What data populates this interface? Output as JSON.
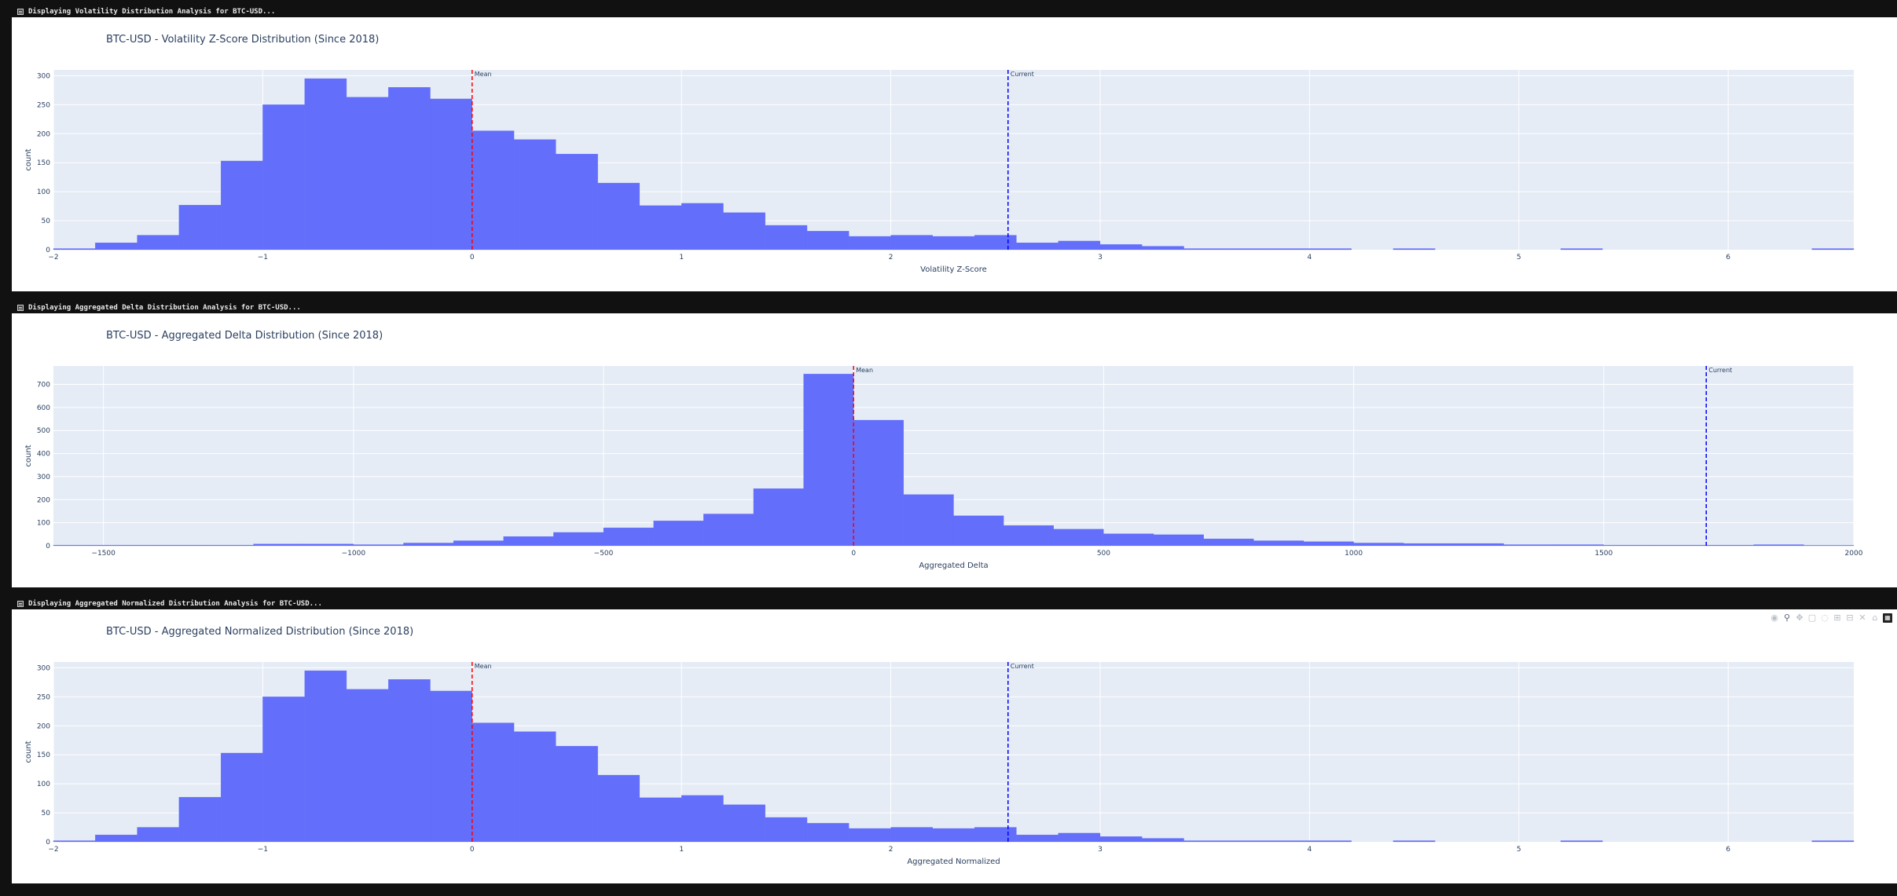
{
  "sections": [
    {
      "header": "Displaying Volatility Distribution Analysis for BTC-USD...",
      "title": "BTC-USD - Volatility Z-Score Distribution (Since 2018)",
      "xlabel": "Volatility Z-Score",
      "ylabel": "count"
    },
    {
      "header": "Displaying Aggregated Delta Distribution Analysis for BTC-USD...",
      "title": "BTC-USD - Aggregated Delta Distribution (Since 2018)",
      "xlabel": "Aggregated Delta",
      "ylabel": "count"
    },
    {
      "header": "Displaying Aggregated Normalized Distribution Analysis for BTC-USD...",
      "title": "BTC-USD - Aggregated Normalized Distribution (Since 2018)",
      "xlabel": "Aggregated Normalized",
      "ylabel": "count"
    }
  ],
  "modebar": [
    "camera-icon",
    "zoom-icon",
    "pan-icon",
    "box-select-icon",
    "lasso-icon",
    "zoom-in-icon",
    "zoom-out-icon",
    "autoscale-icon",
    "home-icon",
    "plotly-logo-icon"
  ],
  "colors": {
    "bar": "#636efa",
    "plot_bg": "#e5ecf6",
    "mean_line": "#ff0000",
    "current_line": "#0000ff",
    "title": "#2a3f5f"
  },
  "chart_data": [
    {
      "type": "bar",
      "title": "BTC-USD - Volatility Z-Score Distribution (Since 2018)",
      "xlabel": "Volatility Z-Score",
      "ylabel": "count",
      "xlim": [
        -2,
        6.6
      ],
      "ylim": [
        0,
        310
      ],
      "grid": true,
      "xticks": [
        -2,
        -1,
        0,
        1,
        2,
        3,
        4,
        5,
        6
      ],
      "xtick_labels": [
        "−2",
        "−1",
        "0",
        "1",
        "2",
        "3",
        "4",
        "5",
        "6"
      ],
      "yticks": [
        0,
        50,
        100,
        150,
        200,
        250,
        300
      ],
      "bin_start": -2,
      "bin_width": 0.2,
      "values": [
        2,
        12,
        25,
        77,
        153,
        250,
        295,
        263,
        280,
        260,
        205,
        190,
        165,
        115,
        76,
        80,
        64,
        42,
        32,
        23,
        25,
        23,
        25,
        12,
        15,
        9,
        6,
        2,
        2,
        2,
        2,
        0,
        2,
        0,
        0,
        0,
        2,
        0,
        0,
        0,
        0,
        0,
        2
      ],
      "lines": [
        {
          "name": "Mean",
          "x": 0,
          "color": "#ff0000"
        },
        {
          "name": "Current",
          "x": 2.56,
          "color": "#0000ff"
        }
      ]
    },
    {
      "type": "bar",
      "title": "BTC-USD - Aggregated Delta Distribution (Since 2018)",
      "xlabel": "Aggregated Delta",
      "ylabel": "count",
      "xlim": [
        -1600,
        2000
      ],
      "ylim": [
        0,
        780
      ],
      "grid": true,
      "xticks": [
        -1500,
        -1000,
        -500,
        0,
        500,
        1000,
        1500,
        2000
      ],
      "xtick_labels": [
        "−1500",
        "−1000",
        "−500",
        "0",
        "500",
        "1000",
        "1500",
        "2000"
      ],
      "yticks": [
        0,
        100,
        200,
        300,
        400,
        500,
        600,
        700
      ],
      "bin_start": -1600,
      "bin_width": 100,
      "values": [
        3,
        3,
        3,
        3,
        8,
        8,
        5,
        12,
        22,
        40,
        58,
        78,
        108,
        138,
        248,
        745,
        545,
        222,
        130,
        88,
        72,
        52,
        48,
        30,
        22,
        18,
        12,
        10,
        10,
        5,
        5,
        3,
        3,
        3,
        5,
        2
      ],
      "lines": [
        {
          "name": "Mean",
          "x": 0,
          "color": "#ff0000"
        },
        {
          "name": "Current",
          "x": 1705,
          "color": "#0000ff"
        }
      ]
    },
    {
      "type": "bar",
      "title": "BTC-USD - Aggregated Normalized Distribution (Since 2018)",
      "xlabel": "Aggregated Normalized",
      "ylabel": "count",
      "xlim": [
        -2,
        6.6
      ],
      "ylim": [
        0,
        310
      ],
      "grid": true,
      "xticks": [
        -2,
        -1,
        0,
        1,
        2,
        3,
        4,
        5,
        6
      ],
      "xtick_labels": [
        "−2",
        "−1",
        "0",
        "1",
        "2",
        "3",
        "4",
        "5",
        "6"
      ],
      "yticks": [
        0,
        50,
        100,
        150,
        200,
        250,
        300
      ],
      "bin_start": -2,
      "bin_width": 0.2,
      "values": [
        2,
        12,
        25,
        77,
        153,
        250,
        295,
        263,
        280,
        260,
        205,
        190,
        165,
        115,
        76,
        80,
        64,
        42,
        32,
        23,
        25,
        23,
        25,
        12,
        15,
        9,
        6,
        2,
        2,
        2,
        2,
        0,
        2,
        0,
        0,
        0,
        2,
        0,
        0,
        0,
        0,
        0,
        2
      ],
      "lines": [
        {
          "name": "Mean",
          "x": 0,
          "color": "#ff0000"
        },
        {
          "name": "Current",
          "x": 2.56,
          "color": "#0000ff"
        }
      ]
    }
  ]
}
